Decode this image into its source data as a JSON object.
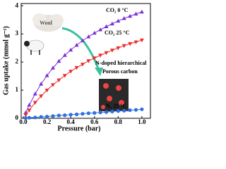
{
  "chart_data": {
    "type": "line",
    "x_label": "Pressure (bar)",
    "y_label": "Gas uptake (mmol g⁻¹)",
    "x": [
      0.02,
      0.05,
      0.1,
      0.15,
      0.2,
      0.25,
      0.3,
      0.35,
      0.4,
      0.45,
      0.5,
      0.55,
      0.6,
      0.65,
      0.7,
      0.75,
      0.8,
      0.85,
      0.9,
      0.95,
      1.0
    ],
    "series": [
      {
        "name": "CO₂ 0 °C",
        "color": "#7b2fd6",
        "marker": "triangle-up",
        "values": [
          0.2,
          0.47,
          0.87,
          1.22,
          1.52,
          1.79,
          2.03,
          2.24,
          2.43,
          2.6,
          2.76,
          2.9,
          3.03,
          3.15,
          3.26,
          3.36,
          3.46,
          3.55,
          3.63,
          3.71,
          3.78
        ]
      },
      {
        "name": "CO₂ 25 °C",
        "color": "#ee2b2b",
        "marker": "triangle-down",
        "values": [
          0.12,
          0.29,
          0.56,
          0.79,
          1.0,
          1.19,
          1.36,
          1.52,
          1.67,
          1.8,
          1.92,
          2.04,
          2.14,
          2.24,
          2.33,
          2.42,
          2.5,
          2.58,
          2.65,
          2.71,
          2.78
        ]
      },
      {
        "name": "N₂ 25 °C",
        "color": "#2f6fe0",
        "marker": "circle",
        "values": [
          0.01,
          0.02,
          0.03,
          0.05,
          0.06,
          0.08,
          0.1,
          0.11,
          0.13,
          0.14,
          0.16,
          0.18,
          0.19,
          0.21,
          0.22,
          0.24,
          0.26,
          0.27,
          0.29,
          0.3,
          0.32
        ]
      }
    ],
    "xlim": [
      0,
      1.09
    ],
    "ylim": [
      0,
      4.08
    ],
    "xticks": [
      {
        "value": 0,
        "label": "0.0"
      },
      0.2,
      0.4,
      0.6,
      0.8,
      {
        "value": 1,
        "label": "1.0"
      }
    ],
    "yticks": [
      0,
      1,
      2,
      3,
      4
    ],
    "annotations": [
      "Wool",
      "N-doped hierarchical",
      "Porous carbon"
    ]
  }
}
